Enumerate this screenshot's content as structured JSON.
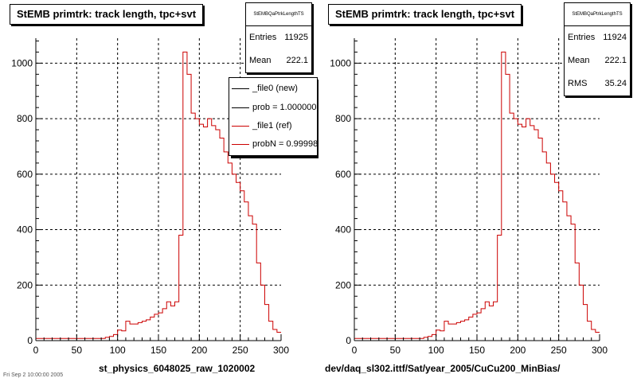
{
  "panels": [
    {
      "title": "StEMB primtrk: track length, tpc+svt",
      "xlabel": "st_physics_6048025_raw_1020002",
      "stats": {
        "name": "StEMBQaPtrkLengthTS",
        "rows": [
          {
            "label": "Entries",
            "value": "11925"
          },
          {
            "label": "Mean",
            "value": "222.1"
          }
        ]
      },
      "legend": {
        "entries": [
          {
            "label": "_file0 (new)",
            "color": "#000000"
          },
          {
            "label": "prob = 1.000000",
            "color": "#000000"
          },
          {
            "label": "_file1 (ref)",
            "color": "#cc0000"
          },
          {
            "label": "probN = 0.999984",
            "color": "#cc0000"
          }
        ]
      }
    },
    {
      "title": "StEMB primtrk: track length, tpc+svt",
      "xlabel": "dev/daq_sl302.ittf/Sat/year_2005/CuCu200_MinBias/",
      "stats": {
        "name": "StEMBQaPtrkLengthTS",
        "rows": [
          {
            "label": "Entries",
            "value": "11924"
          },
          {
            "label": "Mean",
            "value": "222.1"
          },
          {
            "label": "RMS",
            "value": "35.24"
          }
        ]
      }
    }
  ],
  "timestamp": "Fri Sep 2 10:00:00 2005",
  "chart_data": [
    {
      "type": "bar",
      "title": "StEMB primtrk: track length, tpc+svt",
      "xlabel": "st_physics_6048025_raw_1020002",
      "ylabel": "",
      "xlim": [
        0,
        300
      ],
      "ylim": [
        0,
        1090
      ],
      "xticks": [
        0,
        50,
        100,
        150,
        200,
        250,
        300
      ],
      "yticks": [
        0,
        200,
        400,
        600,
        800,
        1000
      ],
      "grid": true,
      "bin_width": 5,
      "bin_edges_start": 0,
      "series": [
        {
          "name": "_file1 (ref)",
          "color": "#cc0000",
          "values": [
            8,
            8,
            8,
            8,
            8,
            8,
            8,
            8,
            8,
            8,
            8,
            8,
            8,
            8,
            8,
            8,
            8,
            12,
            15,
            22,
            38,
            35,
            70,
            60,
            60,
            65,
            70,
            75,
            85,
            95,
            100,
            115,
            140,
            125,
            140,
            380,
            1040,
            960,
            820,
            800,
            780,
            770,
            800,
            775,
            760,
            730,
            680,
            640,
            600,
            570,
            540,
            500,
            450,
            420,
            280,
            200,
            130,
            70,
            40,
            30
          ]
        }
      ]
    },
    {
      "type": "bar",
      "title": "StEMB primtrk: track length, tpc+svt",
      "xlabel": "dev/daq_sl302.ittf/Sat/year_2005/CuCu200_MinBias/",
      "ylabel": "",
      "xlim": [
        0,
        300
      ],
      "ylim": [
        0,
        1090
      ],
      "xticks": [
        0,
        50,
        100,
        150,
        200,
        250,
        300
      ],
      "yticks": [
        0,
        200,
        400,
        600,
        800,
        1000
      ],
      "grid": true,
      "bin_width": 5,
      "bin_edges_start": 0,
      "series": [
        {
          "name": "_file1 (ref)",
          "color": "#cc0000",
          "values": [
            8,
            8,
            8,
            8,
            8,
            8,
            8,
            8,
            8,
            8,
            8,
            8,
            8,
            8,
            8,
            8,
            8,
            12,
            15,
            22,
            38,
            35,
            70,
            60,
            60,
            65,
            70,
            75,
            85,
            95,
            100,
            115,
            140,
            125,
            140,
            380,
            1040,
            960,
            820,
            800,
            780,
            770,
            800,
            775,
            760,
            730,
            680,
            640,
            600,
            570,
            540,
            500,
            450,
            420,
            280,
            200,
            130,
            70,
            40,
            30
          ]
        }
      ]
    }
  ]
}
